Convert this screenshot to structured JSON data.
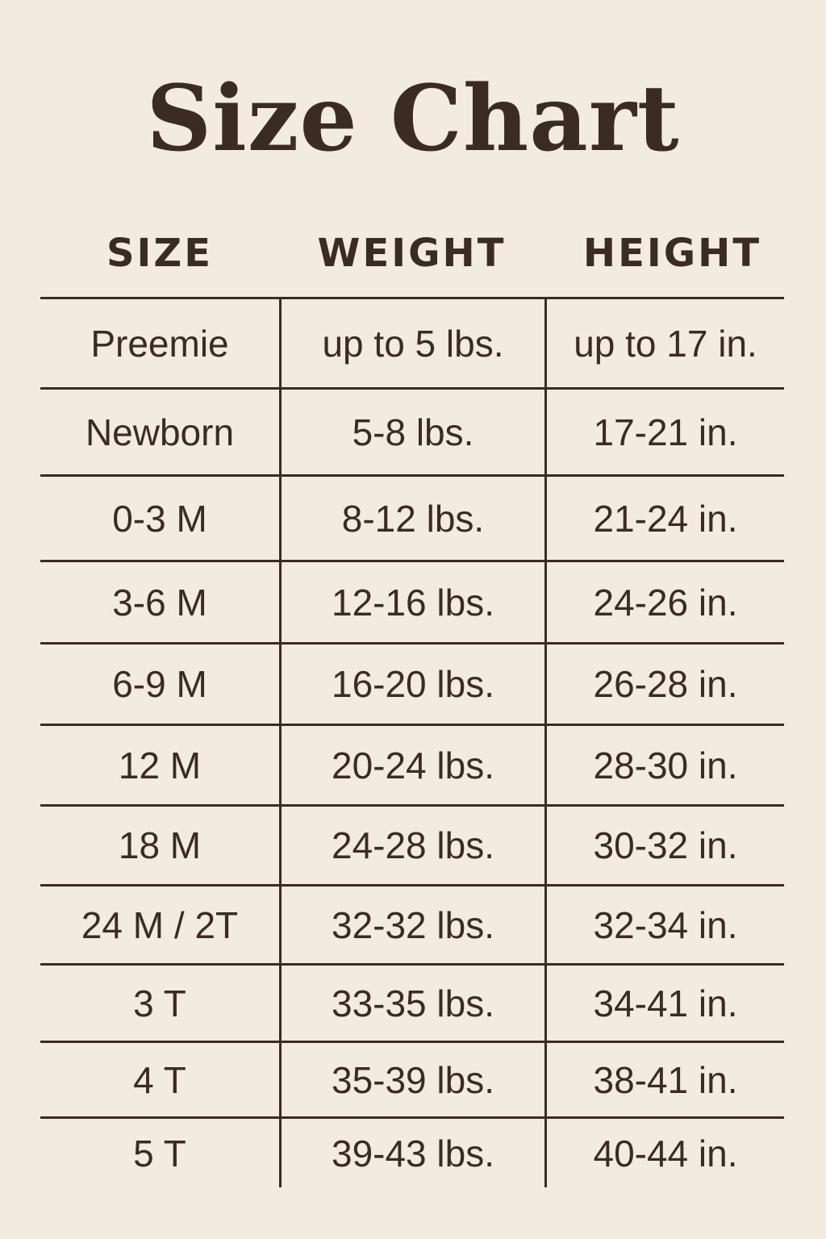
{
  "title": "Size Chart",
  "columns": [
    "SIZE",
    "WEIGHT",
    "HEIGHT"
  ],
  "rows": [
    [
      "Preemie",
      "up to 5 lbs.",
      "up to 17 in."
    ],
    [
      "Newborn",
      "5-8 lbs.",
      "17-21 in."
    ],
    [
      "0-3 M",
      "8-12 lbs.",
      "21-24 in."
    ],
    [
      "3-6 M",
      "12-16 lbs.",
      "24-26 in."
    ],
    [
      "6-9 M",
      "16-20 lbs.",
      "26-28 in."
    ],
    [
      "12 M",
      "20-24 lbs.",
      "28-30 in."
    ],
    [
      "18 M",
      "24-28 lbs.",
      "30-32 in."
    ],
    [
      "24 M / 2T",
      "32-32 lbs.",
      "32-34 in."
    ],
    [
      "3 T",
      "33-35 lbs.",
      "34-41 in."
    ],
    [
      "4 T",
      "35-39 lbs.",
      "38-41 in."
    ],
    [
      "5 T",
      "39-43 lbs.",
      "40-44 in."
    ]
  ],
  "colors": {
    "background": "#f3ebe0",
    "text": "#3a2c22"
  }
}
